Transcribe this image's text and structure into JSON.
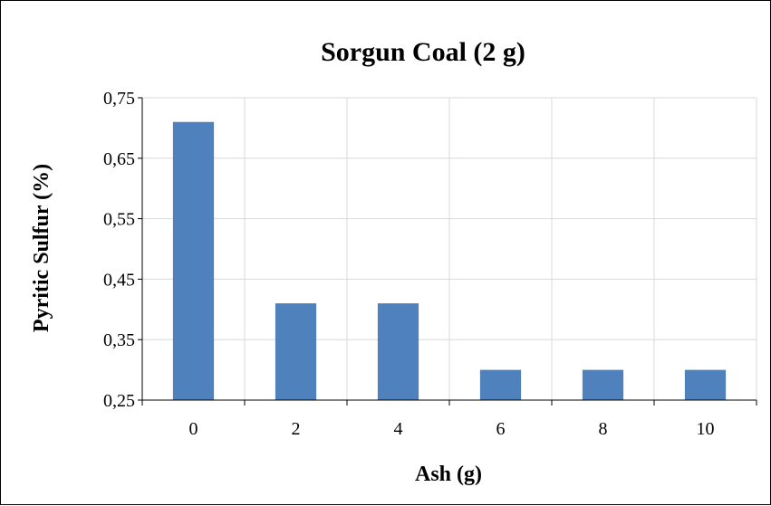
{
  "chart_data": {
    "type": "bar",
    "title": "Sorgun Coal (2 g)",
    "xlabel": "Ash (g)",
    "ylabel": "Pyritic Sulfur (%)",
    "categories": [
      "0",
      "2",
      "4",
      "6",
      "8",
      "10"
    ],
    "values": [
      0.71,
      0.41,
      0.41,
      0.3,
      0.3,
      0.3
    ],
    "ylim": [
      0.25,
      0.75
    ],
    "yticks": [
      0.25,
      0.35,
      0.45,
      0.55,
      0.65,
      0.75
    ],
    "ytick_labels": [
      "0,25",
      "0,35",
      "0,45",
      "0,55",
      "0,65",
      "0,75"
    ],
    "grid": true,
    "legend": "none",
    "bar_color": "#4F81BD",
    "grid_color": "#D9D9D9",
    "axis_color": "#000000"
  }
}
